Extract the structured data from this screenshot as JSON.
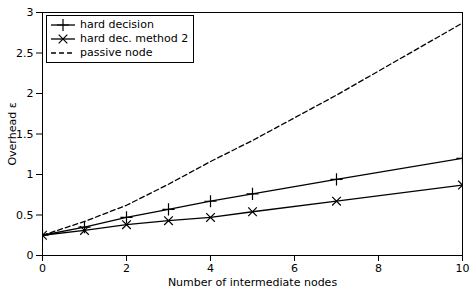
{
  "chart_data": {
    "type": "line",
    "x": [
      0,
      1,
      2,
      3,
      4,
      5,
      7,
      10
    ],
    "xlabel": "Number of intermediate nodes",
    "ylabel": "Overhead ε",
    "xlim": [
      0,
      10
    ],
    "xticks": [
      0,
      2,
      4,
      6,
      8,
      10
    ],
    "ylim": [
      0,
      3
    ],
    "yticks": [
      0,
      0.5,
      1,
      1.5,
      2,
      2.5,
      3
    ],
    "grid": false,
    "legend": "upper left",
    "series": [
      {
        "name": "hard decision",
        "color": "#000000",
        "marker": "plus",
        "line_style": "solid",
        "values": [
          0.25,
          0.35,
          0.47,
          0.57,
          0.67,
          0.76,
          0.94,
          1.2
        ]
      },
      {
        "name": "hard dec. method 2",
        "color": "#000000",
        "marker": "x",
        "line_style": "solid",
        "values": [
          0.25,
          0.31,
          0.38,
          0.43,
          0.47,
          0.54,
          0.67,
          0.87
        ]
      },
      {
        "name": "passive node",
        "color": "#000000",
        "marker": "none",
        "line_style": "dashed",
        "values": [
          0.25,
          0.42,
          0.62,
          0.88,
          1.16,
          1.42,
          1.98,
          2.87
        ]
      }
    ]
  }
}
